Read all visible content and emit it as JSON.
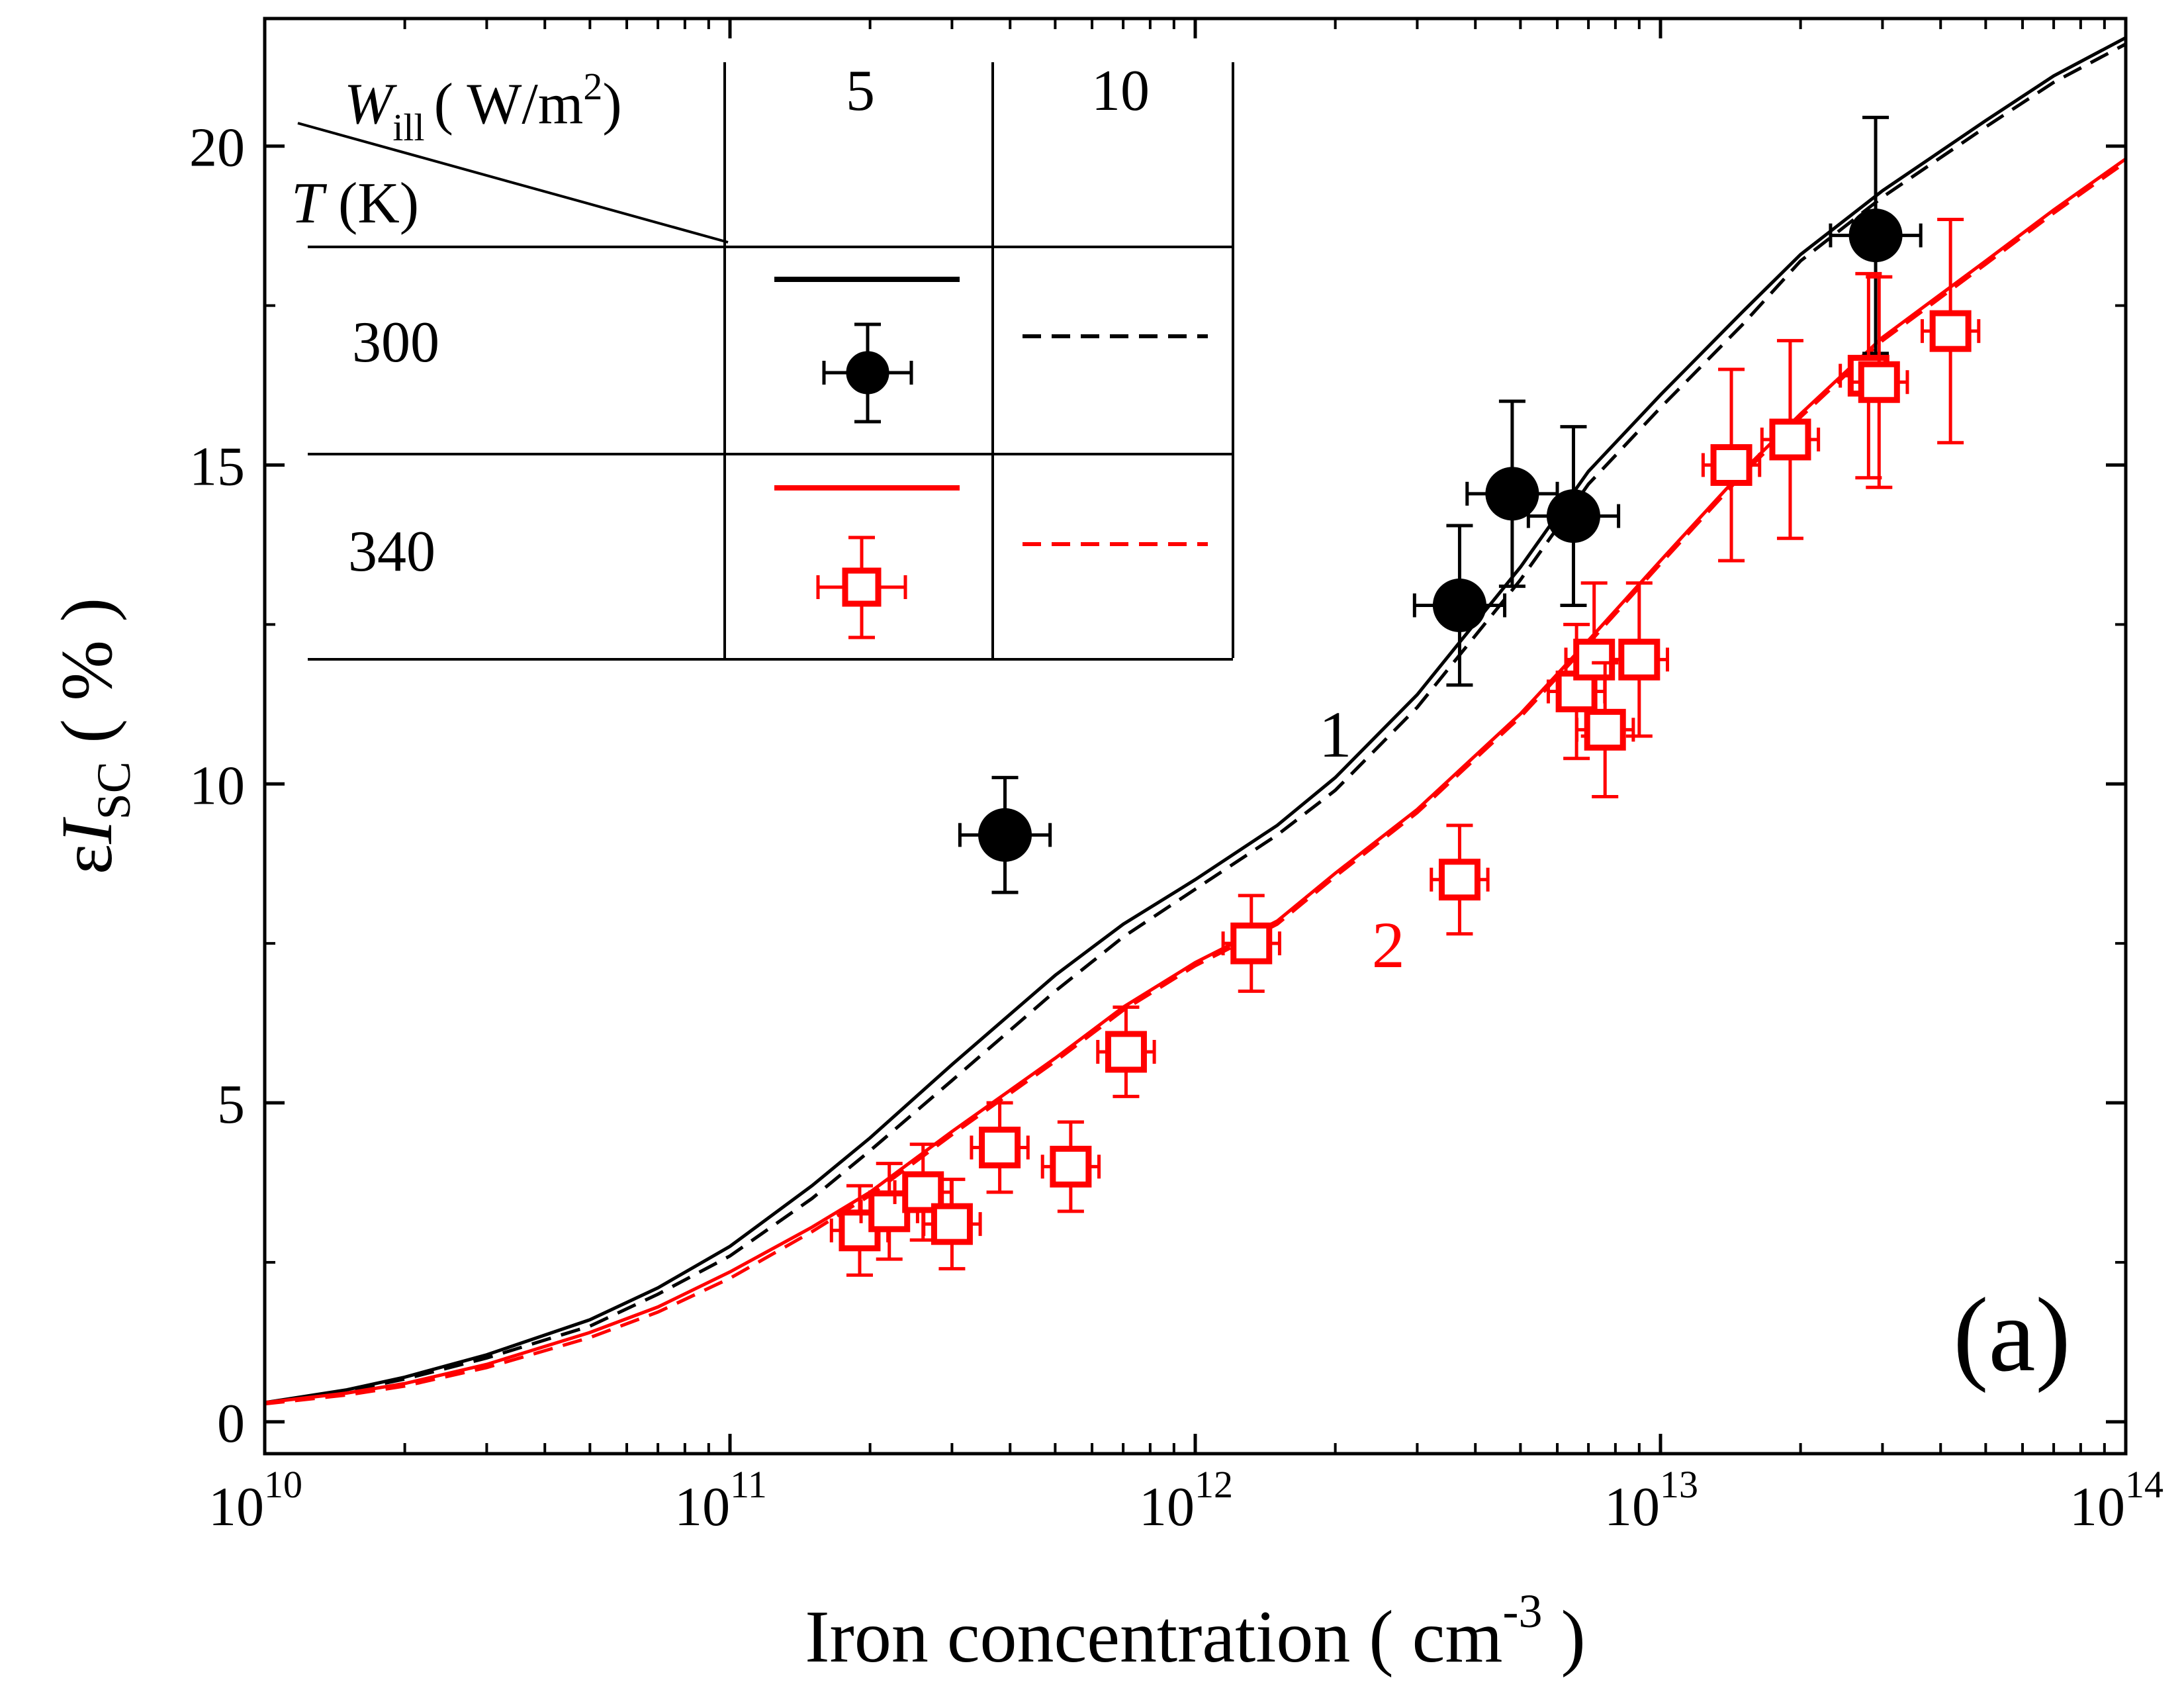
{
  "chart_data": {
    "type": "scatter",
    "panel_label": "(a)",
    "xlabel": "Iron concentration  ( cm",
    "xlabel_sup": "-3",
    "xlabel_close": " )",
    "ylabel_eps": "ε",
    "ylabel_I": "I",
    "ylabel_sub": "SC",
    "ylabel_unit": " ( % )",
    "x_scale": "log",
    "xlim": [
      10000000000.0,
      100000000000000.0
    ],
    "ylim": [
      -0.5,
      22.0
    ],
    "x_tick_bases": [
      "10",
      "10",
      "10",
      "10",
      "10"
    ],
    "x_tick_exps": [
      "10",
      "11",
      "12",
      "13",
      "14"
    ],
    "x_tick_values": [
      10000000000.0,
      100000000000.0,
      1000000000000.0,
      10000000000000.0,
      100000000000000.0
    ],
    "y_tick_labels": [
      "0",
      "5",
      "10",
      "15",
      "20"
    ],
    "y_tick_values": [
      0,
      5,
      10,
      15,
      20
    ],
    "grid": false,
    "colors": {
      "black": "#000000",
      "red": "#ff0000"
    },
    "curve_labels": [
      {
        "text": "1",
        "color": "#000000",
        "x": 2000000000000.0,
        "y": 10.8
      },
      {
        "text": "2",
        "color": "#ff0000",
        "x": 2600000000000.0,
        "y": 7.5
      }
    ],
    "series": [
      {
        "key": "T300_W5_fit",
        "style": "line",
        "dash": "solid",
        "color": "#000000",
        "x": [
          10000000000.0,
          15000000000.0,
          20000000000.0,
          30000000000.0,
          50000000000.0,
          70000000000.0,
          100000000000.0,
          150000000000.0,
          200000000000.0,
          300000000000.0,
          500000000000.0,
          700000000000.0,
          1000000000000.0,
          1500000000000.0,
          2000000000000.0,
          3000000000000.0,
          5000000000000.0,
          7000000000000.0,
          10000000000000.0,
          15000000000000.0,
          20000000000000.0,
          30000000000000.0,
          50000000000000.0,
          70000000000000.0,
          100000000000000.0
        ],
        "y": [
          0.3,
          0.5,
          0.7,
          1.05,
          1.6,
          2.1,
          2.75,
          3.7,
          4.45,
          5.6,
          7.0,
          7.8,
          8.5,
          9.35,
          10.1,
          11.4,
          13.4,
          14.9,
          16.1,
          17.4,
          18.3,
          19.3,
          20.4,
          21.1,
          21.7
        ]
      },
      {
        "key": "T300_W10_fit",
        "style": "line",
        "dash": "dashed",
        "color": "#000000",
        "x": [
          10000000000.0,
          15000000000.0,
          20000000000.0,
          30000000000.0,
          50000000000.0,
          70000000000.0,
          100000000000.0,
          150000000000.0,
          200000000000.0,
          300000000000.0,
          500000000000.0,
          700000000000.0,
          1000000000000.0,
          1500000000000.0,
          2000000000000.0,
          3000000000000.0,
          5000000000000.0,
          7000000000000.0,
          10000000000000.0,
          15000000000000.0,
          20000000000000.0,
          30000000000000.0,
          50000000000000.0,
          70000000000000.0,
          100000000000000.0
        ],
        "y": [
          0.3,
          0.48,
          0.67,
          1.0,
          1.5,
          2.0,
          2.6,
          3.5,
          4.25,
          5.35,
          6.75,
          7.6,
          8.35,
          9.2,
          9.9,
          11.2,
          13.2,
          14.7,
          15.9,
          17.2,
          18.2,
          19.2,
          20.3,
          21.0,
          21.6
        ]
      },
      {
        "key": "T340_W5_fit",
        "style": "line",
        "dash": "solid",
        "color": "#ff0000",
        "x": [
          10000000000.0,
          15000000000.0,
          20000000000.0,
          30000000000.0,
          50000000000.0,
          70000000000.0,
          100000000000.0,
          150000000000.0,
          200000000000.0,
          300000000000.0,
          500000000000.0,
          700000000000.0,
          1000000000000.0,
          1500000000000.0,
          2000000000000.0,
          3000000000000.0,
          5000000000000.0,
          7000000000000.0,
          10000000000000.0,
          15000000000000.0,
          20000000000000.0,
          30000000000000.0,
          50000000000000.0,
          70000000000000.0,
          100000000000000.0
        ],
        "y": [
          0.3,
          0.45,
          0.6,
          0.9,
          1.4,
          1.8,
          2.35,
          3.05,
          3.6,
          4.55,
          5.7,
          6.5,
          7.2,
          7.85,
          8.6,
          9.6,
          11.1,
          12.25,
          13.5,
          14.9,
          15.8,
          17.0,
          18.2,
          19.0,
          19.8
        ]
      },
      {
        "key": "T340_W10_fit",
        "style": "line",
        "dash": "dashed",
        "color": "#ff0000",
        "x": [
          10000000000.0,
          15000000000.0,
          20000000000.0,
          30000000000.0,
          50000000000.0,
          70000000000.0,
          100000000000.0,
          150000000000.0,
          200000000000.0,
          300000000000.0,
          500000000000.0,
          700000000000.0,
          1000000000000.0,
          1500000000000.0,
          2000000000000.0,
          3000000000000.0,
          5000000000000.0,
          7000000000000.0,
          10000000000000.0,
          15000000000000.0,
          20000000000000.0,
          30000000000000.0,
          50000000000000.0,
          70000000000000.0,
          100000000000000.0
        ],
        "y": [
          0.28,
          0.42,
          0.56,
          0.85,
          1.32,
          1.72,
          2.25,
          2.98,
          3.55,
          4.5,
          5.65,
          6.45,
          7.15,
          7.8,
          8.55,
          9.55,
          11.05,
          12.2,
          13.45,
          14.85,
          15.75,
          16.95,
          18.15,
          18.95,
          19.75
        ]
      },
      {
        "key": "T300_W5_data",
        "style": "points",
        "marker": "circle",
        "color": "#000000",
        "x": [
          390000000000.0,
          3700000000000.0,
          4800000000000.0,
          6500000000000.0,
          29000000000000.0
        ],
        "y": [
          9.2,
          12.8,
          14.55,
          14.2,
          18.6
        ],
        "yerr": [
          0.9,
          1.25,
          1.45,
          1.4,
          1.85
        ],
        "xerr_factor": 1.25
      },
      {
        "key": "T340_W5_data",
        "style": "points",
        "marker": "square",
        "color": "#ff0000",
        "x": [
          190000000000.0,
          220000000000.0,
          260000000000.0,
          300000000000.0,
          380000000000.0,
          540000000000.0,
          710000000000.0,
          1320000000000.0,
          3700000000000.0,
          6600000000000.0,
          7200000000000.0,
          7600000000000.0,
          9000000000000.0,
          14200000000000.0,
          19000000000000.0,
          28000000000000.0,
          29500000000000.0,
          42000000000000.0
        ],
        "y": [
          3.0,
          3.3,
          3.6,
          3.1,
          4.3,
          4.0,
          5.8,
          7.5,
          8.5,
          11.45,
          11.95,
          10.85,
          11.95,
          15.0,
          15.4,
          16.4,
          16.3,
          17.1
        ],
        "yerr": [
          0.7,
          0.75,
          0.75,
          0.7,
          0.7,
          0.7,
          0.7,
          0.75,
          0.85,
          1.05,
          1.2,
          1.05,
          1.2,
          1.5,
          1.55,
          1.6,
          1.65,
          1.75
        ],
        "xerr_factor": 1.15
      }
    ]
  },
  "legend": {
    "header_w_italic": "W",
    "header_w_sub": "ill",
    "header_w_unit": "( W/m",
    "header_w_sup": "2",
    "header_w_close": ")",
    "header_t_italic": "T",
    "header_t_unit": " (K)",
    "col_labels": [
      "5",
      "10"
    ],
    "row_labels": [
      "300",
      "340"
    ]
  }
}
